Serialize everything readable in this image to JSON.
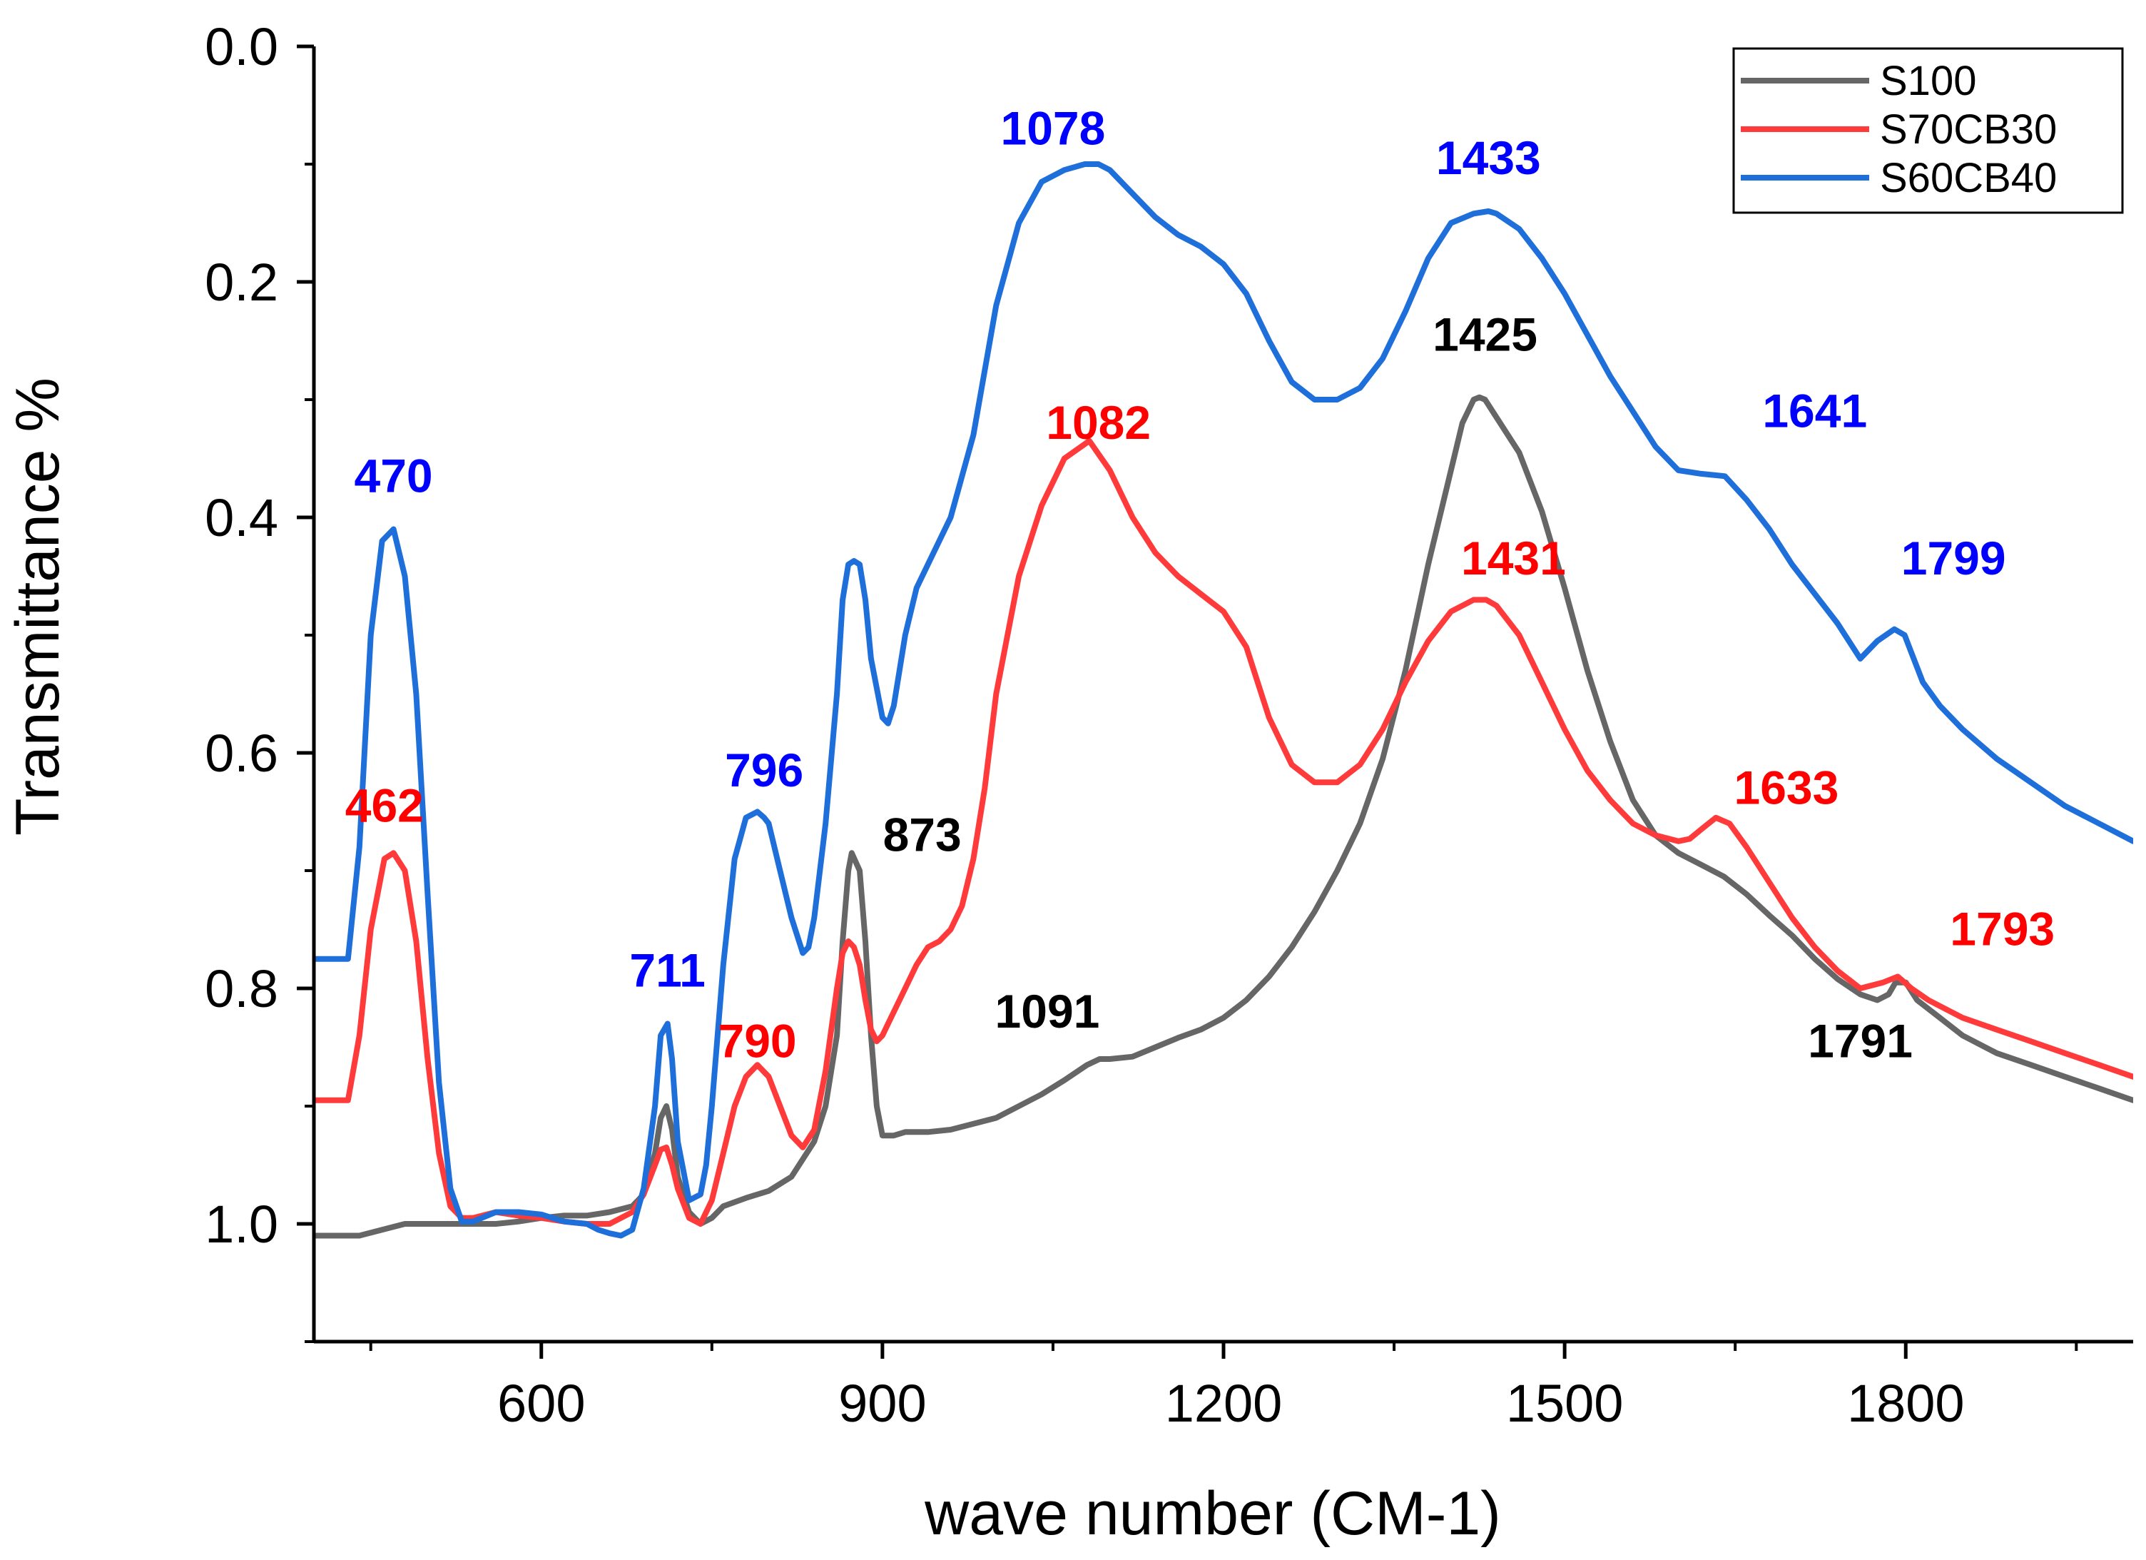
{
  "chart_data": {
    "type": "line",
    "title": "",
    "xlabel": "wave number (CM-1)",
    "ylabel": "Transmittance %",
    "xlim": [
      400,
      2000
    ],
    "ylim": [
      0.0,
      1.1
    ],
    "y_inverted": true,
    "x_ticks": [
      600,
      900,
      1200,
      1500,
      1800
    ],
    "x_tick_labels": [
      "600",
      "900",
      "1200",
      "1500",
      "1800"
    ],
    "y_ticks": [
      0.0,
      0.2,
      0.4,
      0.6,
      0.8,
      1.0
    ],
    "y_tick_labels": [
      "0.0",
      "0.2",
      "0.4",
      "0.6",
      "0.8",
      "1.0"
    ],
    "legend_position": "top-right",
    "legend": [
      "S100",
      "S70CB30",
      "S60CB40"
    ],
    "series": [
      {
        "name": "S100",
        "color": "#666666",
        "x": [
          400,
          420,
          440,
          460,
          480,
          500,
          520,
          540,
          560,
          580,
          600,
          620,
          640,
          660,
          680,
          690,
          700,
          705,
          710,
          715,
          720,
          730,
          740,
          750,
          760,
          780,
          800,
          820,
          840,
          850,
          860,
          865,
          870,
          873,
          880,
          885,
          890,
          895,
          900,
          910,
          920,
          940,
          960,
          980,
          1000,
          1020,
          1040,
          1060,
          1080,
          1091,
          1100,
          1120,
          1140,
          1160,
          1180,
          1200,
          1220,
          1240,
          1260,
          1280,
          1300,
          1320,
          1340,
          1360,
          1380,
          1400,
          1410,
          1420,
          1425,
          1430,
          1440,
          1460,
          1480,
          1500,
          1520,
          1540,
          1560,
          1580,
          1600,
          1620,
          1640,
          1660,
          1680,
          1700,
          1720,
          1740,
          1760,
          1775,
          1785,
          1791,
          1800,
          1810,
          1830,
          1850,
          1880,
          1910,
          1940,
          1970,
          2000
        ],
        "y": [
          1.01,
          1.01,
          1.01,
          1.005,
          1.0,
          1.0,
          1.0,
          1.0,
          1.0,
          0.998,
          0.995,
          0.993,
          0.993,
          0.99,
          0.985,
          0.975,
          0.94,
          0.91,
          0.9,
          0.92,
          0.96,
          0.99,
          1.0,
          0.995,
          0.985,
          0.978,
          0.972,
          0.96,
          0.93,
          0.9,
          0.84,
          0.76,
          0.7,
          0.685,
          0.7,
          0.76,
          0.84,
          0.9,
          0.925,
          0.925,
          0.922,
          0.922,
          0.92,
          0.915,
          0.91,
          0.9,
          0.89,
          0.878,
          0.865,
          0.86,
          0.86,
          0.858,
          0.85,
          0.842,
          0.835,
          0.825,
          0.81,
          0.79,
          0.765,
          0.735,
          0.7,
          0.66,
          0.605,
          0.53,
          0.44,
          0.36,
          0.32,
          0.3,
          0.298,
          0.3,
          0.315,
          0.345,
          0.395,
          0.46,
          0.53,
          0.59,
          0.64,
          0.67,
          0.685,
          0.695,
          0.705,
          0.72,
          0.738,
          0.755,
          0.775,
          0.792,
          0.805,
          0.81,
          0.805,
          0.795,
          0.795,
          0.81,
          0.825,
          0.84,
          0.855,
          0.865,
          0.875,
          0.885,
          0.895
        ]
      },
      {
        "name": "S70CB30",
        "color": "#ff3a3a",
        "x": [
          400,
          420,
          430,
          440,
          450,
          462,
          470,
          480,
          490,
          500,
          510,
          520,
          530,
          540,
          560,
          580,
          600,
          620,
          640,
          660,
          680,
          690,
          700,
          705,
          710,
          715,
          720,
          730,
          740,
          750,
          760,
          770,
          780,
          790,
          800,
          810,
          820,
          830,
          840,
          850,
          860,
          865,
          870,
          875,
          880,
          885,
          890,
          895,
          900,
          905,
          910,
          920,
          930,
          940,
          950,
          960,
          970,
          980,
          990,
          1000,
          1020,
          1040,
          1060,
          1082,
          1100,
          1120,
          1140,
          1160,
          1180,
          1200,
          1220,
          1240,
          1260,
          1280,
          1300,
          1320,
          1340,
          1360,
          1380,
          1400,
          1420,
          1431,
          1440,
          1460,
          1480,
          1500,
          1520,
          1540,
          1560,
          1580,
          1600,
          1610,
          1620,
          1633,
          1645,
          1660,
          1680,
          1700,
          1720,
          1740,
          1760,
          1780,
          1793,
          1805,
          1820,
          1850,
          1880,
          1910,
          1940,
          1970,
          2000
        ],
        "y": [
          0.895,
          0.895,
          0.895,
          0.84,
          0.75,
          0.69,
          0.685,
          0.7,
          0.76,
          0.86,
          0.94,
          0.985,
          0.995,
          0.995,
          0.99,
          0.993,
          0.995,
          0.998,
          1.0,
          1.0,
          0.99,
          0.975,
          0.95,
          0.937,
          0.935,
          0.95,
          0.97,
          0.995,
          1.0,
          0.98,
          0.94,
          0.9,
          0.875,
          0.865,
          0.875,
          0.9,
          0.925,
          0.935,
          0.92,
          0.87,
          0.8,
          0.77,
          0.76,
          0.765,
          0.78,
          0.81,
          0.835,
          0.845,
          0.84,
          0.83,
          0.82,
          0.8,
          0.78,
          0.765,
          0.76,
          0.75,
          0.73,
          0.69,
          0.63,
          0.55,
          0.45,
          0.39,
          0.35,
          0.335,
          0.36,
          0.4,
          0.43,
          0.45,
          0.465,
          0.48,
          0.51,
          0.57,
          0.61,
          0.625,
          0.625,
          0.61,
          0.58,
          0.54,
          0.505,
          0.48,
          0.47,
          0.47,
          0.475,
          0.5,
          0.54,
          0.58,
          0.615,
          0.64,
          0.66,
          0.67,
          0.675,
          0.673,
          0.665,
          0.655,
          0.66,
          0.68,
          0.71,
          0.74,
          0.765,
          0.785,
          0.8,
          0.795,
          0.79,
          0.8,
          0.81,
          0.825,
          0.835,
          0.845,
          0.855,
          0.865,
          0.875
        ]
      },
      {
        "name": "S60CB40",
        "color": "#1e6fd9",
        "x": [
          400,
          420,
          430,
          440,
          450,
          460,
          470,
          480,
          490,
          500,
          510,
          520,
          530,
          540,
          560,
          580,
          600,
          620,
          640,
          650,
          660,
          670,
          680,
          690,
          700,
          705,
          711,
          715,
          720,
          730,
          740,
          745,
          750,
          760,
          770,
          780,
          790,
          796,
          800,
          810,
          820,
          830,
          835,
          840,
          850,
          860,
          865,
          870,
          875,
          880,
          885,
          890,
          900,
          905,
          910,
          920,
          930,
          940,
          960,
          980,
          1000,
          1020,
          1040,
          1060,
          1078,
          1090,
          1100,
          1120,
          1140,
          1160,
          1180,
          1200,
          1220,
          1240,
          1260,
          1280,
          1300,
          1320,
          1340,
          1360,
          1380,
          1400,
          1420,
          1433,
          1440,
          1460,
          1480,
          1500,
          1520,
          1540,
          1560,
          1580,
          1600,
          1620,
          1641,
          1660,
          1680,
          1700,
          1720,
          1740,
          1760,
          1775,
          1790,
          1799,
          1805,
          1815,
          1830,
          1850,
          1880,
          1910,
          1940,
          1970,
          2000
        ],
        "y": [
          0.775,
          0.775,
          0.775,
          0.68,
          0.5,
          0.42,
          0.41,
          0.45,
          0.55,
          0.72,
          0.88,
          0.97,
          0.998,
          0.998,
          0.99,
          0.99,
          0.992,
          0.998,
          1.0,
          1.005,
          1.008,
          1.01,
          1.005,
          0.97,
          0.9,
          0.84,
          0.83,
          0.86,
          0.93,
          0.98,
          0.975,
          0.95,
          0.9,
          0.78,
          0.69,
          0.655,
          0.65,
          0.655,
          0.66,
          0.7,
          0.74,
          0.77,
          0.765,
          0.74,
          0.66,
          0.55,
          0.47,
          0.44,
          0.437,
          0.44,
          0.47,
          0.52,
          0.57,
          0.575,
          0.56,
          0.5,
          0.46,
          0.44,
          0.4,
          0.33,
          0.22,
          0.15,
          0.115,
          0.105,
          0.1,
          0.1,
          0.105,
          0.125,
          0.145,
          0.16,
          0.17,
          0.185,
          0.21,
          0.25,
          0.285,
          0.3,
          0.3,
          0.29,
          0.265,
          0.225,
          0.18,
          0.15,
          0.142,
          0.14,
          0.142,
          0.155,
          0.18,
          0.21,
          0.245,
          0.28,
          0.31,
          0.34,
          0.36,
          0.363,
          0.365,
          0.385,
          0.41,
          0.44,
          0.465,
          0.49,
          0.52,
          0.505,
          0.495,
          0.5,
          0.515,
          0.54,
          0.56,
          0.58,
          0.605,
          0.625,
          0.645,
          0.66,
          0.675
        ]
      }
    ],
    "annotations": [
      {
        "text": "470",
        "x": 470,
        "y": 0.365,
        "color": "#0000ff"
      },
      {
        "text": "462",
        "x": 462,
        "y": 0.645,
        "color": "#ff0000"
      },
      {
        "text": "711",
        "x": 711,
        "y": 0.785,
        "color": "#0000ff"
      },
      {
        "text": "796",
        "x": 796,
        "y": 0.615,
        "color": "#0000ff"
      },
      {
        "text": "790",
        "x": 790,
        "y": 0.845,
        "color": "#ff0000"
      },
      {
        "text": "873",
        "x": 935,
        "y": 0.67,
        "color": "#000000"
      },
      {
        "text": "1091",
        "x": 1045,
        "y": 0.82,
        "color": "#000000"
      },
      {
        "text": "1078",
        "x": 1050,
        "y": 0.07,
        "color": "#0000ff"
      },
      {
        "text": "1082",
        "x": 1090,
        "y": 0.32,
        "color": "#ff0000"
      },
      {
        "text": "1433",
        "x": 1433,
        "y": 0.095,
        "color": "#0000ff"
      },
      {
        "text": "1425",
        "x": 1430,
        "y": 0.245,
        "color": "#000000"
      },
      {
        "text": "1431",
        "x": 1455,
        "y": 0.435,
        "color": "#ff0000"
      },
      {
        "text": "1641",
        "x": 1720,
        "y": 0.31,
        "color": "#0000ff"
      },
      {
        "text": "1633",
        "x": 1695,
        "y": 0.63,
        "color": "#ff0000"
      },
      {
        "text": "1799",
        "x": 1842,
        "y": 0.435,
        "color": "#0000ff"
      },
      {
        "text": "1793",
        "x": 1885,
        "y": 0.75,
        "color": "#ff0000"
      },
      {
        "text": "1791",
        "x": 1760,
        "y": 0.845,
        "color": "#000000"
      }
    ]
  }
}
